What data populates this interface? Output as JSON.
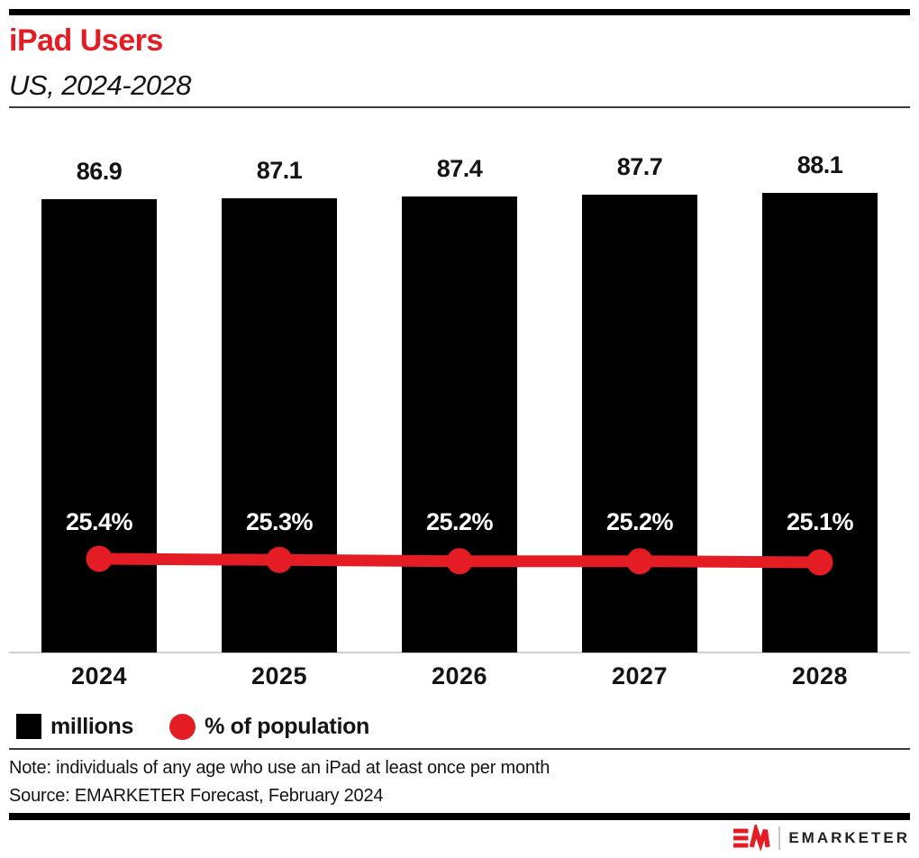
{
  "header": {
    "title": "iPad Users",
    "subtitle": "US, 2024-2028"
  },
  "chart_data": {
    "type": "bar",
    "title": "iPad Users",
    "subtitle": "US, 2024-2028",
    "categories": [
      "2024",
      "2025",
      "2026",
      "2027",
      "2028"
    ],
    "series": [
      {
        "name": "millions",
        "type": "bar",
        "color": "#000000",
        "values": [
          86.9,
          87.1,
          87.4,
          87.7,
          88.1
        ],
        "value_format": "0.0"
      },
      {
        "name": "% of population",
        "type": "line",
        "color": "#E41C24",
        "values": [
          25.4,
          25.3,
          25.2,
          25.2,
          25.1
        ],
        "value_format": "0.0%"
      }
    ],
    "xlabel": "",
    "ylabel": "",
    "grid": false,
    "legend_position": "bottom",
    "bar_labels_shown": true,
    "line_labels_shown": true
  },
  "legend": {
    "items": [
      {
        "label": "millions",
        "swatch": "square",
        "color": "#000000"
      },
      {
        "label": "% of population",
        "swatch": "circle",
        "color": "#E41C24"
      }
    ]
  },
  "note": "Note: individuals of any age who use an iPad at least once per month",
  "source": "Source: EMARKETER Forecast, February 2024",
  "footer": {
    "brand": "EMARKETER",
    "logo": "em-mark-icon"
  },
  "colors": {
    "accent": "#E41C24",
    "bar": "#000000",
    "axis_line": "#CDCFD9",
    "rule": "#3B3B3F"
  }
}
